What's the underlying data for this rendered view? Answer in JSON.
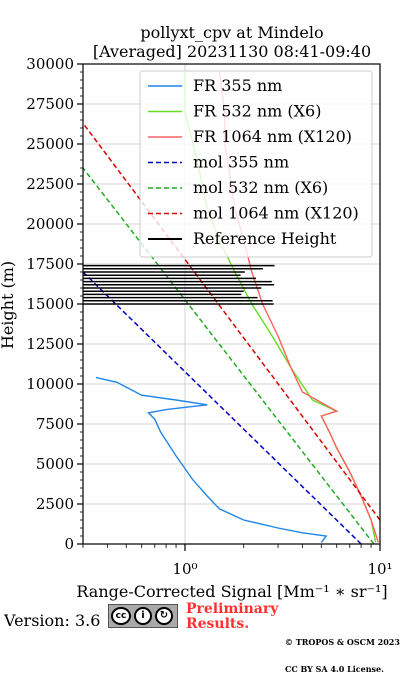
{
  "chart_data": {
    "type": "line",
    "title": "pollyxt_cpv at Mindelo",
    "subtitle": "[Averaged] 20231130 08:41-09:40",
    "xlabel": "Range-Corrected Signal [Mm⁻¹ ∗ sr⁻¹]",
    "ylabel": "Height (m)",
    "xscale": "log",
    "xlim": [
      0.3,
      10
    ],
    "ylim": [
      0,
      30000
    ],
    "x_tick_labels": [
      "10⁰",
      "10¹"
    ],
    "x_major_ticks": [
      1,
      10
    ],
    "y_ticks": [
      0,
      2500,
      5000,
      7500,
      10000,
      12500,
      15000,
      17500,
      20000,
      22500,
      25000,
      27500,
      30000
    ],
    "y_tick_labels": [
      "0",
      "2500",
      "5000",
      "7500",
      "10000",
      "12500",
      "15000",
      "17500",
      "20000",
      "22500",
      "25000",
      "27500",
      "30000"
    ],
    "grid": true,
    "legend_position": "top-right",
    "series": [
      {
        "name": "FR 355 nm",
        "color": "#1f86e8",
        "style": "solid",
        "points": [
          [
            5.0,
            100
          ],
          [
            5.3,
            500
          ],
          [
            4.0,
            700
          ],
          [
            3.0,
            1000
          ],
          [
            2.0,
            1500
          ],
          [
            1.5,
            2200
          ],
          [
            1.3,
            3000
          ],
          [
            1.1,
            4000
          ],
          [
            0.9,
            5500
          ],
          [
            0.75,
            7000
          ],
          [
            0.7,
            7800
          ],
          [
            0.65,
            8200
          ],
          [
            0.8,
            8400
          ],
          [
            1.3,
            8700
          ],
          [
            0.9,
            9000
          ],
          [
            0.6,
            9300
          ],
          [
            0.5,
            9800
          ],
          [
            0.45,
            10100
          ],
          [
            0.35,
            10400
          ]
        ]
      },
      {
        "name": "FR 532 nm (X6)",
        "color": "#66dd22",
        "style": "solid",
        "points": [
          [
            9.5,
            100
          ],
          [
            9.0,
            1500
          ],
          [
            8.0,
            3000
          ],
          [
            7.0,
            4500
          ],
          [
            6.0,
            6000
          ],
          [
            5.5,
            7000
          ],
          [
            5.0,
            8000
          ],
          [
            6.0,
            8300
          ],
          [
            4.5,
            9000
          ],
          [
            3.5,
            11000
          ],
          [
            2.8,
            13000
          ],
          [
            2.2,
            15000
          ],
          [
            1.8,
            17000
          ],
          [
            1.5,
            19000
          ],
          [
            1.3,
            21000
          ],
          [
            1.2,
            23000
          ],
          [
            1.1,
            25000
          ],
          [
            1.0,
            27000
          ],
          [
            1.0,
            29500
          ]
        ]
      },
      {
        "name": "FR 1064 nm (X120)",
        "color": "#ff6060",
        "style": "solid",
        "points": [
          [
            9.8,
            100
          ],
          [
            9.0,
            1500
          ],
          [
            8.0,
            3000
          ],
          [
            7.0,
            4500
          ],
          [
            6.0,
            6000
          ],
          [
            5.5,
            7000
          ],
          [
            5.0,
            8000
          ],
          [
            6.0,
            8300
          ],
          [
            4.0,
            9500
          ],
          [
            3.5,
            11000
          ],
          [
            3.0,
            13000
          ],
          [
            2.5,
            15000
          ],
          [
            2.2,
            17000
          ],
          [
            2.0,
            19000
          ],
          [
            1.8,
            21000
          ],
          [
            1.7,
            23000
          ],
          [
            1.6,
            25000
          ],
          [
            1.6,
            27000
          ],
          [
            1.5,
            29500
          ]
        ]
      },
      {
        "name": "mol 355 nm",
        "color": "#0000cc",
        "style": "dashed",
        "points": [
          [
            8.0,
            0
          ],
          [
            0.3,
            17000
          ]
        ]
      },
      {
        "name": "mol 532 nm (X6)",
        "color": "#22aa22",
        "style": "dashed",
        "points": [
          [
            9.3,
            0
          ],
          [
            0.3,
            23500
          ]
        ]
      },
      {
        "name": "mol 1064 nm (X120)",
        "color": "#dd0000",
        "style": "dashed",
        "points": [
          [
            10.0,
            1500
          ],
          [
            0.3,
            26300
          ]
        ]
      },
      {
        "name": "Reference Height",
        "color": "#000000",
        "style": "solid",
        "points": [
          [
            0.3,
            15000
          ],
          [
            0.3,
            17500
          ]
        ]
      }
    ]
  },
  "footer": {
    "version": "Version: 3.6",
    "preliminary_line1": "Preliminary",
    "preliminary_line2": "Results.",
    "copyright_line1": "© TROPOS & OSCM 2023.",
    "copyright_line2": "CC BY SA 4.0 License.",
    "badge_cc": "cc",
    "badge_by": "i",
    "badge_sa": "↻"
  },
  "icons": {
    "badge": "creative-commons-by-sa-icon"
  }
}
